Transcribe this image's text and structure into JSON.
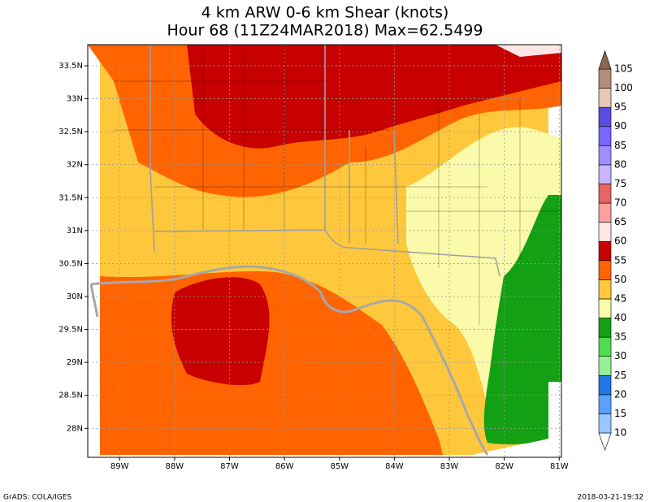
{
  "title": [
    "4 km ARW 0-6 km Shear (knots)",
    "Hour 68 (11Z24MAR2018) Max=62.5499"
  ],
  "map": {
    "xlim": [
      -89.58,
      -80.96
    ],
    "ylim": [
      27.56,
      33.82
    ],
    "xticks": [
      {
        "value": -89,
        "label": "89W"
      },
      {
        "value": -88,
        "label": "88W"
      },
      {
        "value": -87,
        "label": "87W"
      },
      {
        "value": -86,
        "label": "86W"
      },
      {
        "value": -85,
        "label": "85W"
      },
      {
        "value": -84,
        "label": "84W"
      },
      {
        "value": -83,
        "label": "83W"
      },
      {
        "value": -82,
        "label": "82W"
      },
      {
        "value": -81,
        "label": "81W"
      }
    ],
    "yticks": [
      {
        "value": 28,
        "label": "28N"
      },
      {
        "value": 28.5,
        "label": "28.5N"
      },
      {
        "value": 29,
        "label": "29N"
      },
      {
        "value": 29.5,
        "label": "29.5N"
      },
      {
        "value": 30,
        "label": "30N"
      },
      {
        "value": 30.5,
        "label": "30.5N"
      },
      {
        "value": 31,
        "label": "31N"
      },
      {
        "value": 31.5,
        "label": "31.5N"
      },
      {
        "value": 32,
        "label": "32N"
      },
      {
        "value": 32.5,
        "label": "32.5N"
      },
      {
        "value": 33,
        "label": "33N"
      },
      {
        "value": 33.5,
        "label": "33.5N"
      }
    ]
  },
  "colorbar": {
    "below_color": "#ffffff",
    "levels": [
      {
        "value": 10,
        "color": "#96c8ff"
      },
      {
        "value": 15,
        "color": "#5aa0ff"
      },
      {
        "value": 20,
        "color": "#1e78e6"
      },
      {
        "value": 25,
        "color": "#96f096"
      },
      {
        "value": 30,
        "color": "#50dc50"
      },
      {
        "value": 35,
        "color": "#14a014"
      },
      {
        "value": 40,
        "color": "#fafaaa"
      },
      {
        "value": 45,
        "color": "#ffc83c"
      },
      {
        "value": 50,
        "color": "#ff6400"
      },
      {
        "value": 55,
        "color": "#c80000"
      },
      {
        "value": 60,
        "color": "#ffe6e6"
      },
      {
        "value": 65,
        "color": "#ffa0a0"
      },
      {
        "value": 70,
        "color": "#e66464"
      },
      {
        "value": 75,
        "color": "#c8b4ff"
      },
      {
        "value": 80,
        "color": "#a08cff"
      },
      {
        "value": 85,
        "color": "#7864ff"
      },
      {
        "value": 90,
        "color": "#5a4be1"
      },
      {
        "value": 95,
        "color": "#e6c8b4"
      },
      {
        "value": 100,
        "color": "#b48c78"
      },
      {
        "value": 105,
        "color": "#8c6450"
      }
    ]
  },
  "footer": {
    "left": "GrADS: COLA/IGES",
    "right": "2018-03-21-19:32"
  }
}
